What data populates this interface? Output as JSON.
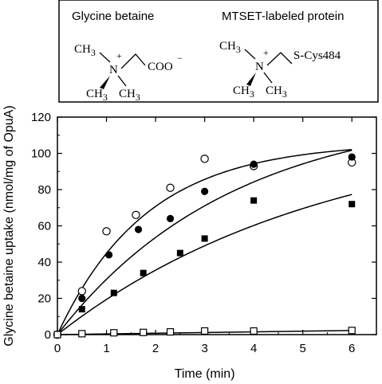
{
  "structures": {
    "left": {
      "title": "Glycine betaine",
      "methyl_top": "CH",
      "methyl_top_sub": "3",
      "methyl_bl": "CH",
      "methyl_bl_sub": "3",
      "methyl_br": "CH",
      "methyl_br_sub": "3",
      "nitrogen": "N",
      "charge_plus": "+",
      "tail": "COO",
      "charge_minus": "−"
    },
    "right": {
      "title": "MTSET-labeled protein",
      "methyl_top": "CH",
      "methyl_top_sub": "3",
      "methyl_bl": "CH",
      "methyl_bl_sub": "3",
      "methyl_br": "CH",
      "methyl_br_sub": "3",
      "nitrogen": "N",
      "charge_plus": "+",
      "tail": "S-Cys484"
    }
  },
  "chart_data": {
    "type": "scatter",
    "xlabel": "Time (min)",
    "ylabel": "Glycine betaine uptake (nmol/mg of OpuA)",
    "xlim": [
      0,
      6.5
    ],
    "ylim": [
      0,
      120
    ],
    "xticks": [
      0,
      1,
      2,
      3,
      4,
      5,
      6
    ],
    "yticks": [
      0,
      20,
      40,
      60,
      80,
      100,
      120
    ],
    "grid": false,
    "series": [
      {
        "marker": "open-circle",
        "x": [
          0,
          0.5,
          1,
          1.6,
          2.3,
          3,
          4,
          6
        ],
        "y": [
          0,
          24,
          57,
          66,
          81,
          97,
          93,
          95
        ],
        "fit": {
          "model": "a*(1-exp(-k*t))",
          "a": 106,
          "k": 0.55
        }
      },
      {
        "marker": "filled-circle",
        "x": [
          0,
          0.5,
          1.05,
          1.65,
          2.3,
          3,
          4,
          6
        ],
        "y": [
          0,
          20,
          44,
          58,
          64,
          79,
          94,
          98
        ],
        "fit": {
          "model": "a*(1-exp(-k*t))",
          "a": 125,
          "k": 0.28
        }
      },
      {
        "marker": "filled-square",
        "x": [
          0,
          0.5,
          1.15,
          1.75,
          2.5,
          3,
          4,
          6
        ],
        "y": [
          0,
          14,
          23,
          34,
          45,
          53,
          74,
          72
        ],
        "fit": {
          "model": "a*(1-exp(-k*t))",
          "a": 116,
          "k": 0.183
        }
      },
      {
        "marker": "open-square",
        "x": [
          0,
          0.5,
          1.15,
          1.75,
          2.3,
          3,
          4,
          6
        ],
        "y": [
          0,
          0.5,
          1,
          1.2,
          1.5,
          2,
          2,
          2.3
        ],
        "fit": {
          "model": "linear",
          "slope": 0.38
        }
      }
    ]
  }
}
